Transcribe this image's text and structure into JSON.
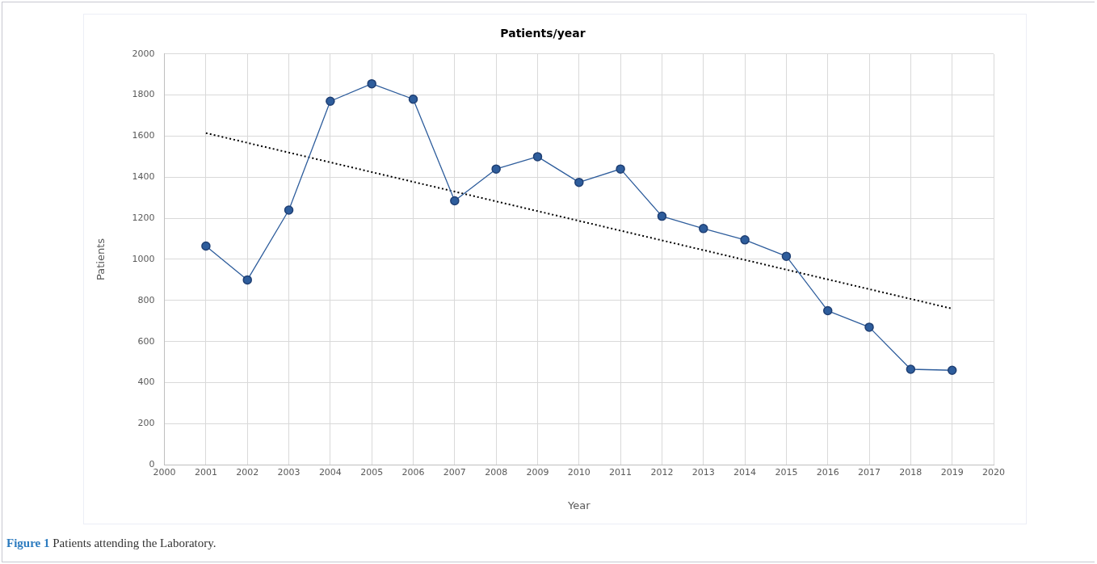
{
  "chart_data": {
    "type": "line",
    "title": "Patients/year",
    "xlabel": "Year",
    "ylabel": "Patients",
    "annotations": [
      "Figure 1 Patients attending the Laboratory."
    ],
    "xlim": [
      2000,
      2020
    ],
    "xticks": [
      2000,
      2001,
      2002,
      2003,
      2004,
      2005,
      2006,
      2007,
      2008,
      2009,
      2010,
      2011,
      2012,
      2013,
      2014,
      2015,
      2016,
      2017,
      2018,
      2019,
      2020
    ],
    "ylim": [
      0,
      2000
    ],
    "yticks": [
      0,
      200,
      400,
      600,
      800,
      1000,
      1200,
      1400,
      1600,
      1800,
      2000
    ],
    "grid": true,
    "legend": false,
    "marker": "circle",
    "line_style": "solid",
    "series": [
      {
        "color": "#2e5d9c",
        "x": [
          2001,
          2002,
          2003,
          2004,
          2005,
          2006,
          2007,
          2008,
          2009,
          2010,
          2011,
          2012,
          2013,
          2014,
          2015,
          2016,
          2017,
          2018,
          2019
        ],
        "values": [
          1065,
          900,
          1240,
          1770,
          1855,
          1780,
          1285,
          1440,
          1500,
          1375,
          1440,
          1210,
          1150,
          1095,
          1015,
          750,
          670,
          465,
          460
        ]
      },
      {
        "type": "line",
        "color": "#000000",
        "marker": "none",
        "line_style": "dotted",
        "x": [
          2001,
          2019
        ],
        "values": [
          1615,
          760
        ]
      }
    ]
  }
}
